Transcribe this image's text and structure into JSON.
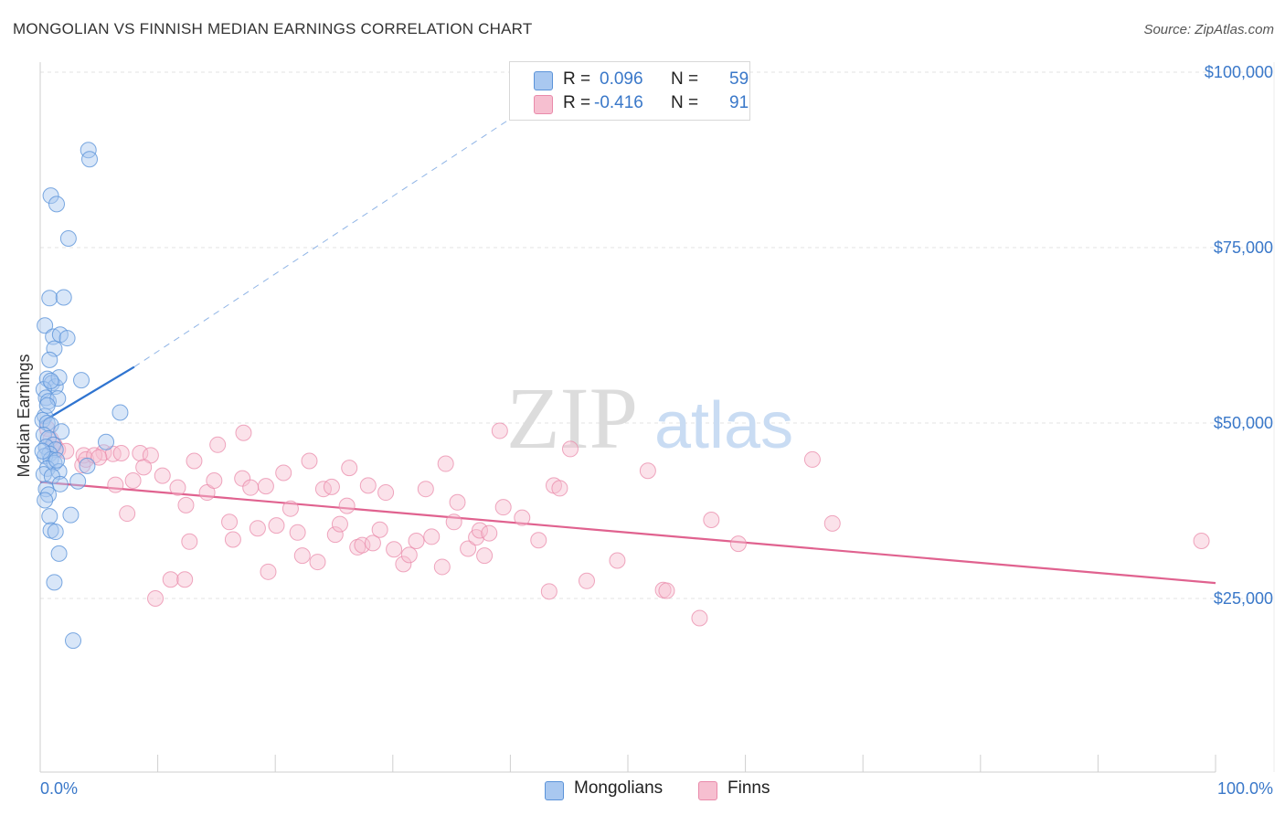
{
  "title": "MONGOLIAN VS FINNISH MEDIAN EARNINGS CORRELATION CHART",
  "source": "Source: ZipAtlas.com",
  "watermark_zip": "ZIP",
  "watermark_atlas": "atlas",
  "legend": {
    "rows": [
      {
        "r_label": "R =",
        "r_value": "0.096",
        "n_label": "N =",
        "n_value": "59"
      },
      {
        "r_label": "R =",
        "r_value": "-0.416",
        "n_label": "N =",
        "n_value": "91"
      }
    ]
  },
  "bottom_legend": [
    "Mongolians",
    "Finns"
  ],
  "colors": {
    "blue_fill": "#a9c8f0",
    "blue_stroke": "#5b93d9",
    "blue_line": "#2f74d0",
    "pink_fill": "#f6bfd0",
    "pink_stroke": "#e98aaa",
    "pink_line": "#e0628f",
    "tick_text": "#3a78c9",
    "grid": "#e3e3e3"
  },
  "chart_data": {
    "type": "scatter",
    "title": "MONGOLIAN VS FINNISH MEDIAN EARNINGS CORRELATION CHART",
    "xlabel": "",
    "ylabel": "Median Earnings",
    "xlim": [
      0,
      100
    ],
    "ylim": [
      0,
      105000
    ],
    "x_tick_labels": [
      "0.0%",
      "100.0%"
    ],
    "y_ticks": [
      {
        "value": 25000,
        "label": "$25,000"
      },
      {
        "value": 50000,
        "label": "$50,000"
      },
      {
        "value": 75000,
        "label": "$75,000"
      },
      {
        "value": 100000,
        "label": "$100,000"
      }
    ],
    "series": [
      {
        "name": "Mongolians",
        "R": 0.096,
        "N": 59,
        "trend": {
          "x": [
            0,
            8
          ],
          "y": [
            50000,
            58000
          ],
          "dashed_to": [
            46,
            100000
          ]
        },
        "points": [
          [
            4.1,
            88900
          ],
          [
            4.2,
            87600
          ],
          [
            0.9,
            82400
          ],
          [
            1.4,
            81200
          ],
          [
            2.4,
            76300
          ],
          [
            0.8,
            67800
          ],
          [
            2.0,
            67900
          ],
          [
            0.4,
            63900
          ],
          [
            1.1,
            62300
          ],
          [
            1.7,
            62600
          ],
          [
            2.3,
            62100
          ],
          [
            1.2,
            60600
          ],
          [
            0.8,
            59000
          ],
          [
            3.5,
            56100
          ],
          [
            0.6,
            56300
          ],
          [
            1.0,
            55700
          ],
          [
            1.3,
            55200
          ],
          [
            1.6,
            56500
          ],
          [
            0.3,
            54800
          ],
          [
            0.5,
            53600
          ],
          [
            0.7,
            53100
          ],
          [
            1.5,
            53500
          ],
          [
            6.8,
            51500
          ],
          [
            0.4,
            51000
          ],
          [
            0.2,
            50400
          ],
          [
            0.6,
            50000
          ],
          [
            0.9,
            49700
          ],
          [
            1.8,
            48800
          ],
          [
            0.3,
            48300
          ],
          [
            0.7,
            47800
          ],
          [
            5.6,
            47300
          ],
          [
            1.1,
            46900
          ],
          [
            0.5,
            46600
          ],
          [
            1.3,
            46200
          ],
          [
            0.8,
            45600
          ],
          [
            0.4,
            45300
          ],
          [
            0.9,
            44800
          ],
          [
            1.2,
            44300
          ],
          [
            4.0,
            43900
          ],
          [
            0.6,
            43500
          ],
          [
            1.6,
            43100
          ],
          [
            0.3,
            42700
          ],
          [
            1.0,
            42400
          ],
          [
            3.2,
            41700
          ],
          [
            1.7,
            41300
          ],
          [
            0.5,
            40600
          ],
          [
            0.7,
            39800
          ],
          [
            0.4,
            39000
          ],
          [
            2.6,
            36900
          ],
          [
            0.8,
            36700
          ],
          [
            0.9,
            34700
          ],
          [
            1.3,
            34500
          ],
          [
            1.6,
            31400
          ],
          [
            1.2,
            27300
          ],
          [
            2.8,
            19000
          ],
          [
            0.2,
            46000
          ],
          [
            1.4,
            44700
          ],
          [
            0.6,
            52500
          ],
          [
            0.9,
            56000
          ]
        ]
      },
      {
        "name": "Finns",
        "R": -0.416,
        "N": 91,
        "trend": {
          "x": [
            0,
            100
          ],
          "y": [
            41600,
            27200
          ]
        },
        "points": [
          [
            0.6,
            49200
          ],
          [
            0.9,
            47700
          ],
          [
            1.2,
            46900
          ],
          [
            1.5,
            46200
          ],
          [
            2.2,
            46000
          ],
          [
            3.6,
            44000
          ],
          [
            3.7,
            45400
          ],
          [
            3.9,
            44800
          ],
          [
            5.4,
            45800
          ],
          [
            6.2,
            45600
          ],
          [
            6.9,
            45700
          ],
          [
            8.5,
            45700
          ],
          [
            9.4,
            45400
          ],
          [
            4.6,
            45400
          ],
          [
            5.0,
            45100
          ],
          [
            6.4,
            41200
          ],
          [
            7.9,
            41800
          ],
          [
            8.8,
            43700
          ],
          [
            10.4,
            42500
          ],
          [
            11.7,
            40800
          ],
          [
            12.4,
            38300
          ],
          [
            13.1,
            44600
          ],
          [
            14.2,
            40100
          ],
          [
            14.8,
            41800
          ],
          [
            15.1,
            46900
          ],
          [
            16.1,
            35900
          ],
          [
            16.4,
            33400
          ],
          [
            17.2,
            42100
          ],
          [
            17.9,
            40800
          ],
          [
            18.5,
            35000
          ],
          [
            17.3,
            48600
          ],
          [
            19.2,
            41000
          ],
          [
            19.4,
            28800
          ],
          [
            20.1,
            35400
          ],
          [
            20.7,
            42900
          ],
          [
            21.3,
            37800
          ],
          [
            21.9,
            34400
          ],
          [
            22.3,
            31100
          ],
          [
            22.9,
            44600
          ],
          [
            23.6,
            30200
          ],
          [
            24.1,
            40600
          ],
          [
            24.8,
            40900
          ],
          [
            25.1,
            34100
          ],
          [
            25.5,
            35600
          ],
          [
            26.1,
            38200
          ],
          [
            26.3,
            43600
          ],
          [
            27.0,
            32300
          ],
          [
            27.4,
            32600
          ],
          [
            27.9,
            41100
          ],
          [
            28.3,
            32900
          ],
          [
            28.9,
            34800
          ],
          [
            29.4,
            40100
          ],
          [
            30.1,
            32000
          ],
          [
            30.9,
            29900
          ],
          [
            31.4,
            31200
          ],
          [
            32.0,
            33200
          ],
          [
            32.8,
            40600
          ],
          [
            33.3,
            33800
          ],
          [
            34.2,
            29500
          ],
          [
            34.5,
            44200
          ],
          [
            35.2,
            35900
          ],
          [
            35.5,
            38700
          ],
          [
            36.4,
            32100
          ],
          [
            37.1,
            33700
          ],
          [
            37.4,
            34700
          ],
          [
            37.8,
            31100
          ],
          [
            38.2,
            34300
          ],
          [
            39.1,
            48900
          ],
          [
            39.4,
            38000
          ],
          [
            41.0,
            36500
          ],
          [
            42.4,
            33300
          ],
          [
            43.3,
            26000
          ],
          [
            43.7,
            41100
          ],
          [
            44.2,
            40700
          ],
          [
            45.1,
            46300
          ],
          [
            46.5,
            27500
          ],
          [
            49.1,
            30400
          ],
          [
            51.7,
            43200
          ],
          [
            53.0,
            26200
          ],
          [
            53.3,
            26100
          ],
          [
            56.1,
            22200
          ],
          [
            57.1,
            36200
          ],
          [
            59.4,
            32800
          ],
          [
            65.7,
            44800
          ],
          [
            67.4,
            35700
          ],
          [
            9.8,
            25000
          ],
          [
            11.1,
            27700
          ],
          [
            12.3,
            27700
          ],
          [
            12.7,
            33100
          ],
          [
            7.4,
            37100
          ],
          [
            98.8,
            33200
          ]
        ]
      }
    ]
  }
}
